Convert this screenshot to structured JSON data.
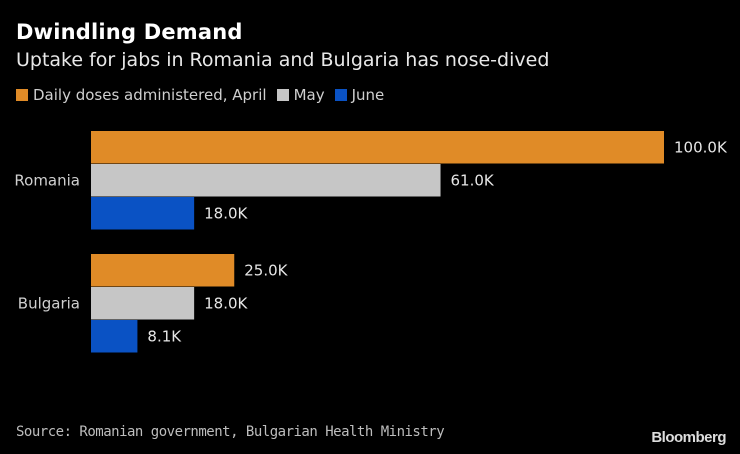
{
  "chart_data": {
    "type": "bar",
    "orientation": "horizontal",
    "title": "Dwindling Demand",
    "subtitle": "Uptake for jabs in Romania and Bulgaria has nose-dived",
    "categories": [
      "Romania",
      "Bulgaria"
    ],
    "series": [
      {
        "name": "Daily doses administered, April",
        "color": "#e08b27",
        "values": [
          100.0,
          25.0
        ],
        "labels": [
          "100.0K",
          "25.0K"
        ]
      },
      {
        "name": "May",
        "color": "#c6c6c6",
        "values": [
          61.0,
          18.0
        ],
        "labels": [
          "61.0K",
          "18.0K"
        ]
      },
      {
        "name": "June",
        "color": "#0a52c4",
        "values": [
          18.0,
          8.1
        ],
        "labels": [
          "18.0K",
          "8.1K"
        ]
      }
    ],
    "units": "thousands of doses",
    "xlim": [
      0,
      100
    ],
    "grid": false,
    "legend_position": "top-left",
    "xlabel": "",
    "ylabel": ""
  },
  "footer": {
    "source": "Source: Romanian government, Bulgarian Health Ministry",
    "brand": "Bloomberg"
  }
}
